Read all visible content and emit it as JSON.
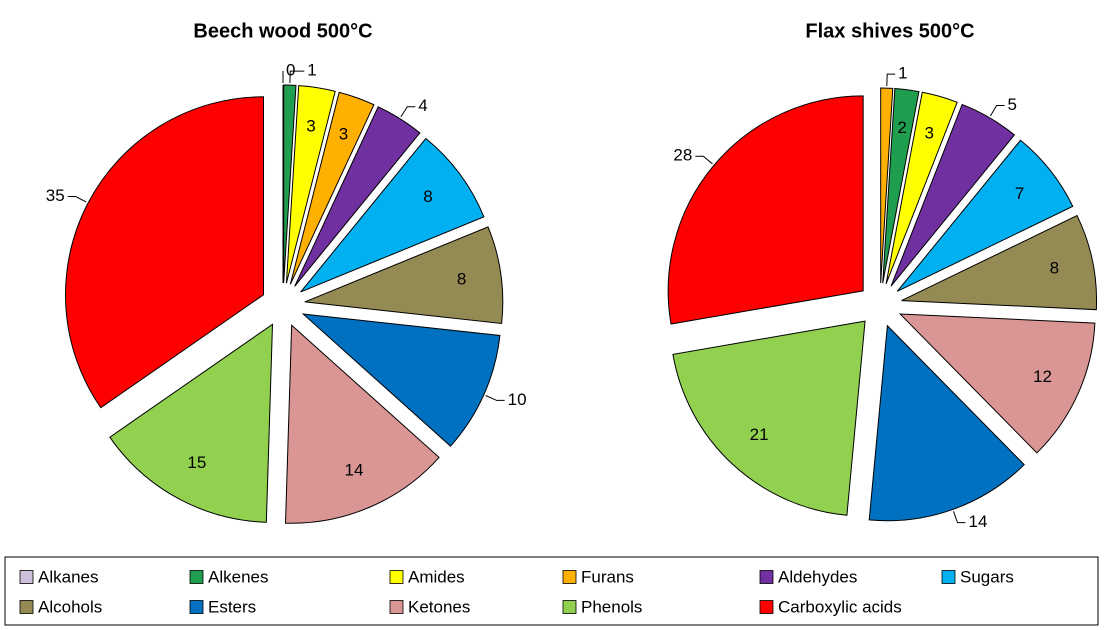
{
  "chart_data": [
    {
      "type": "pie",
      "title": "Beech wood 500°C",
      "categories": [
        "Alkanes",
        "Alkenes",
        "Amides",
        "Furans",
        "Aldehydes",
        "Sugars",
        "Alcohols",
        "Esters",
        "Ketones",
        "Phenols",
        "Carboxylic acids"
      ],
      "values": [
        0,
        1,
        3,
        3,
        4,
        8,
        8,
        10,
        14,
        15,
        35
      ]
    },
    {
      "type": "pie",
      "title": "Flax shives 500°C",
      "categories": [
        "Furans",
        "Alkenes",
        "Amides",
        "Aldehydes",
        "Sugars",
        "Alcohols",
        "Ketones",
        "Esters",
        "Phenols",
        "Carboxylic acids"
      ],
      "values": [
        1,
        2,
        3,
        5,
        7,
        8,
        12,
        14,
        21,
        28
      ]
    }
  ],
  "legend": {
    "items": [
      "Alkanes",
      "Alkenes",
      "Amides",
      "Furans",
      "Aldehydes",
      "Sugars",
      "Alcohols",
      "Esters",
      "Ketones",
      "Phenols",
      "Carboxylic acids"
    ],
    "colors": [
      "#ccc0da",
      "#1f9e50",
      "#ffff00",
      "#ffb000",
      "#7030a0",
      "#00b0f0",
      "#948a54",
      "#0070c0",
      "#d99694",
      "#92d050",
      "#ff0000"
    ]
  }
}
